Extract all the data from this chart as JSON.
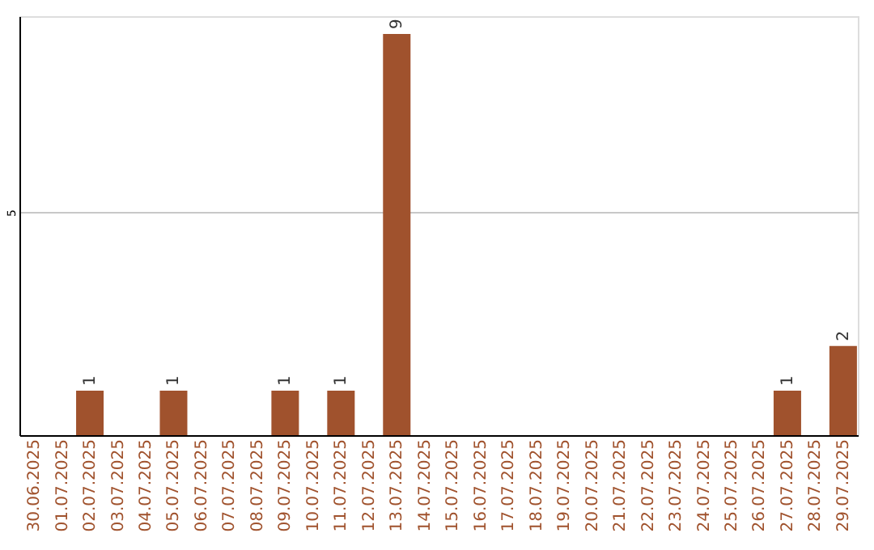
{
  "chart_data": {
    "type": "bar",
    "categories": [
      "30.06.2025",
      "01.07.2025",
      "02.07.2025",
      "03.07.2025",
      "04.07.2025",
      "05.07.2025",
      "06.07.2025",
      "07.07.2025",
      "08.07.2025",
      "09.07.2025",
      "10.07.2025",
      "11.07.2025",
      "12.07.2025",
      "13.07.2025",
      "14.07.2025",
      "15.07.2025",
      "16.07.2025",
      "17.07.2025",
      "18.07.2025",
      "19.07.2025",
      "20.07.2025",
      "21.07.2025",
      "22.07.2025",
      "23.07.2025",
      "24.07.2025",
      "25.07.2025",
      "26.07.2025",
      "27.07.2025",
      "28.07.2025",
      "29.07.2025"
    ],
    "values": [
      0,
      0,
      1,
      0,
      0,
      1,
      0,
      0,
      0,
      1,
      0,
      1,
      0,
      9,
      0,
      0,
      0,
      0,
      0,
      0,
      0,
      0,
      0,
      0,
      0,
      0,
      0,
      1,
      0,
      2
    ],
    "value_labels": [
      null,
      null,
      "1",
      null,
      null,
      "1",
      null,
      null,
      null,
      "1",
      null,
      "1",
      null,
      "9",
      null,
      null,
      null,
      null,
      null,
      null,
      null,
      null,
      null,
      null,
      null,
      null,
      null,
      "1",
      null,
      "2"
    ],
    "color": "#a0522d",
    "ylim": [
      0,
      9.4
    ],
    "yticks": [
      5
    ],
    "grid": "y"
  }
}
